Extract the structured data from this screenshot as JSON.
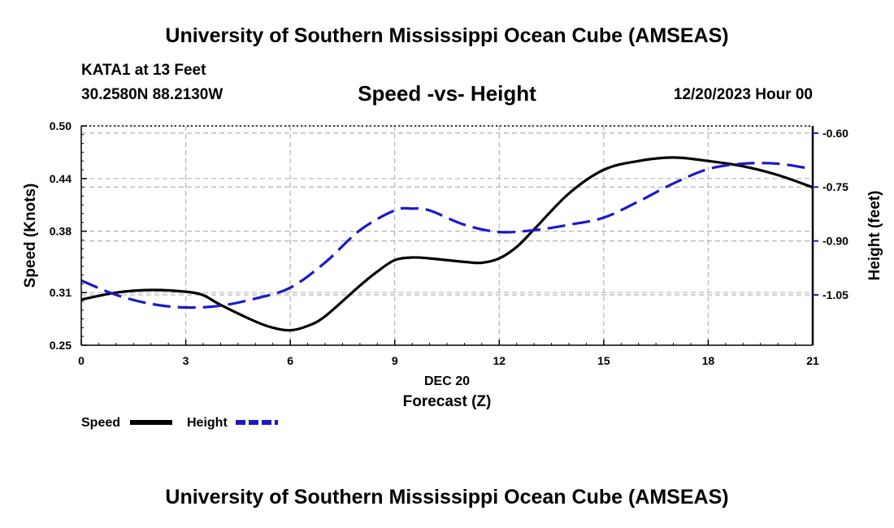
{
  "header": {
    "main_title": "University of Southern Mississippi Ocean Cube (AMSEAS)",
    "station": "KATA1 at 13 Feet",
    "coords": "30.2580N  88.2130W",
    "datetime": "12/20/2023 Hour 00",
    "footer_title": "University of Southern Mississippi Ocean Cube (AMSEAS)"
  },
  "chart_data": {
    "type": "line",
    "title": "Speed -vs- Height",
    "xlabel": "Forecast (Z)",
    "xlabel_date": "DEC 20",
    "ylabel": "Speed (Knots)",
    "y2label": "Height (feet)",
    "x_ticks": [
      0,
      3,
      6,
      9,
      12,
      15,
      18,
      21
    ],
    "x_tick_labels": [
      "0",
      "3",
      "6",
      "9",
      "12",
      "15",
      "18",
      "21"
    ],
    "xlim": [
      0,
      21
    ],
    "ylim": [
      0.25,
      0.5
    ],
    "y_ticks": [
      0.25,
      0.31,
      0.38,
      0.44,
      0.5
    ],
    "y_tick_labels": [
      "0.25",
      "0.31",
      "0.38",
      "0.44",
      "0.50"
    ],
    "y2lim": [
      -1.19,
      -0.58
    ],
    "y2_ticks": [
      -0.6,
      -0.75,
      -0.9,
      -1.05
    ],
    "y2_tick_labels": [
      "-0.60",
      "-0.75",
      "-0.90",
      "-1.05"
    ],
    "grid": true,
    "series": [
      {
        "name": "Speed",
        "axis": "left",
        "color": "#000000",
        "dash": "solid",
        "x": [
          0,
          1,
          2,
          3,
          3.5,
          4,
          5,
          5.5,
          6,
          6.5,
          7,
          8,
          8.5,
          9,
          9.5,
          10,
          11,
          11.5,
          12,
          12.5,
          13,
          14,
          15,
          16,
          17,
          18,
          19,
          20,
          21
        ],
        "values": [
          0.302,
          0.31,
          0.313,
          0.311,
          0.307,
          0.296,
          0.277,
          0.27,
          0.267,
          0.272,
          0.283,
          0.318,
          0.334,
          0.347,
          0.35,
          0.349,
          0.345,
          0.344,
          0.349,
          0.362,
          0.382,
          0.423,
          0.45,
          0.46,
          0.464,
          0.46,
          0.454,
          0.444,
          0.43
        ]
      },
      {
        "name": "Height",
        "axis": "right",
        "color": "#1a1ac8",
        "dash": "dashed",
        "x": [
          0,
          1,
          2,
          3,
          4,
          5,
          6,
          7,
          8,
          9,
          9.5,
          10,
          11,
          12,
          13,
          14,
          15,
          16,
          17,
          18,
          19,
          20,
          21
        ],
        "values": [
          -1.01,
          -1.05,
          -1.075,
          -1.085,
          -1.08,
          -1.06,
          -1.03,
          -0.96,
          -0.87,
          -0.815,
          -0.81,
          -0.815,
          -0.855,
          -0.875,
          -0.87,
          -0.855,
          -0.835,
          -0.79,
          -0.74,
          -0.7,
          -0.685,
          -0.685,
          -0.7
        ]
      }
    ],
    "legend": [
      {
        "label": "Speed",
        "color": "#000000",
        "dash": "solid"
      },
      {
        "label": "Height",
        "color": "#1a1ac8",
        "dash": "dashed"
      }
    ],
    "legend_position": "bottom-left"
  }
}
